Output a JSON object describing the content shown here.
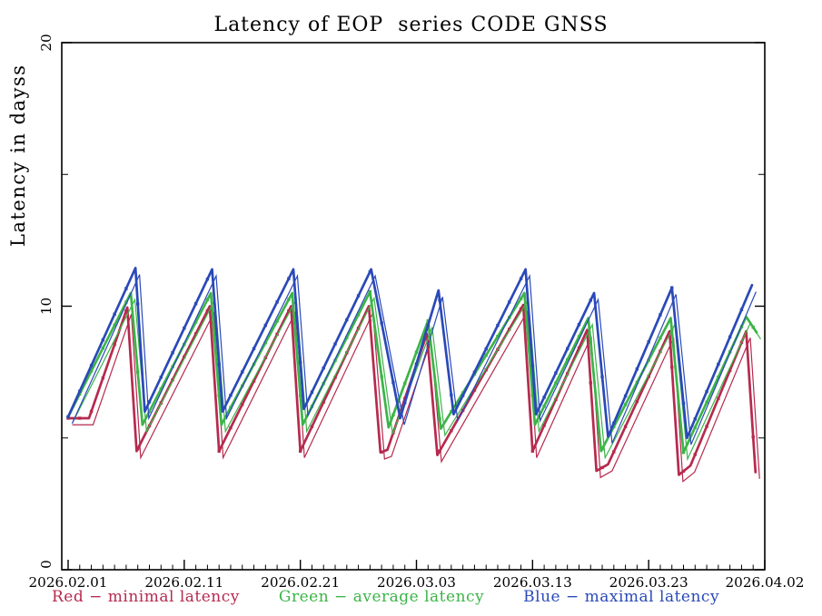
{
  "page": {
    "background": "#ffffff"
  },
  "chart_data": {
    "type": "line",
    "title": "Latency of EOP  series CODE GNSS",
    "ylabel": "Latency in dayss",
    "xlabel": "",
    "ylim": [
      0,
      20
    ],
    "y_major_ticks": [
      0,
      10,
      20
    ],
    "y_minor_ticks": [
      5,
      15
    ],
    "grid": false,
    "legend_position": "bottom",
    "x_axis": {
      "start_date": "2026.02.01",
      "end_date": "2026.04.02",
      "span_days": 60,
      "minor_tick_step_days": 1,
      "major_tick_days": [
        0,
        10,
        20,
        30,
        40,
        50,
        60
      ],
      "major_tick_labels": [
        "2026.02.01",
        "2026.02.11",
        "2026.02.21",
        "2026.03.03",
        "2026.03.13",
        "2026.03.23",
        "2026.04.02"
      ]
    },
    "series": [
      {
        "name": "minimal-latency",
        "legend_label": "Red − minimal latency",
        "color": "#b62a4e",
        "points_day_value": [
          [
            0,
            5.75
          ],
          [
            1.8,
            5.75
          ],
          [
            5.1,
            9.95
          ],
          [
            5.9,
            4.5
          ],
          [
            12.2,
            10.0
          ],
          [
            13.0,
            4.5
          ],
          [
            19.2,
            10.0
          ],
          [
            20.0,
            4.5
          ],
          [
            25.9,
            10.0
          ],
          [
            26.9,
            4.45
          ],
          [
            27.5,
            4.55
          ],
          [
            30.9,
            8.95
          ],
          [
            31.8,
            4.35
          ],
          [
            39.2,
            10.05
          ],
          [
            40.0,
            4.5
          ],
          [
            44.7,
            9.1
          ],
          [
            45.5,
            3.75
          ],
          [
            46.5,
            4.0
          ],
          [
            51.8,
            9.05
          ],
          [
            52.6,
            3.6
          ],
          [
            53.6,
            3.95
          ],
          [
            58.4,
            9.05
          ],
          [
            59.2,
            3.7
          ]
        ]
      },
      {
        "name": "average-latency",
        "legend_label": "Green − average latency",
        "color": "#3cb448",
        "points_day_value": [
          [
            0,
            5.8
          ],
          [
            5.4,
            10.5
          ],
          [
            6.4,
            5.5
          ],
          [
            12.3,
            10.5
          ],
          [
            13.2,
            5.5
          ],
          [
            19.3,
            10.5
          ],
          [
            20.2,
            5.5
          ],
          [
            26.0,
            10.55
          ],
          [
            27.6,
            5.4
          ],
          [
            31.0,
            9.45
          ],
          [
            32.1,
            5.35
          ],
          [
            39.3,
            10.5
          ],
          [
            40.2,
            5.5
          ],
          [
            44.8,
            9.55
          ],
          [
            45.9,
            4.5
          ],
          [
            51.9,
            9.55
          ],
          [
            53.0,
            4.45
          ],
          [
            58.4,
            9.6
          ],
          [
            59.3,
            9.0
          ]
        ]
      },
      {
        "name": "maximal-latency",
        "legend_label": "Blue − maximal latency",
        "color": "#2a49b8",
        "points_day_value": [
          [
            0,
            5.8
          ],
          [
            5.8,
            11.45
          ],
          [
            6.6,
            6.0
          ],
          [
            12.4,
            11.4
          ],
          [
            13.3,
            6.0
          ],
          [
            19.4,
            11.4
          ],
          [
            20.3,
            6.1
          ],
          [
            26.1,
            11.4
          ],
          [
            28.6,
            5.75
          ],
          [
            31.9,
            10.6
          ],
          [
            33.2,
            5.9
          ],
          [
            39.4,
            11.4
          ],
          [
            40.3,
            5.9
          ],
          [
            45.3,
            10.5
          ],
          [
            46.5,
            5.05
          ],
          [
            52.0,
            10.7
          ],
          [
            53.3,
            5.0
          ],
          [
            58.9,
            10.8
          ]
        ]
      }
    ]
  }
}
